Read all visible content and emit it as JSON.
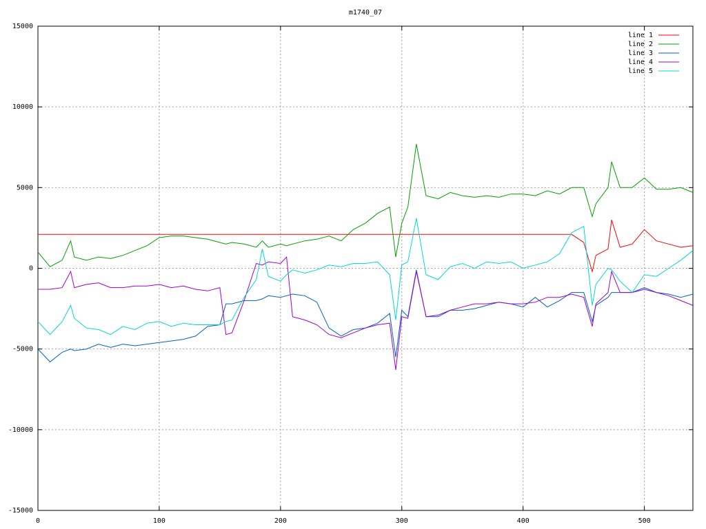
{
  "chart_data": {
    "type": "line",
    "title": "m1740_07",
    "x": [
      0,
      10,
      20,
      27,
      30,
      40,
      50,
      60,
      70,
      80,
      90,
      100,
      110,
      120,
      130,
      140,
      150,
      155,
      160,
      170,
      180,
      185,
      190,
      200,
      205,
      210,
      220,
      230,
      240,
      250,
      260,
      270,
      280,
      290,
      295,
      300,
      305,
      312,
      320,
      330,
      340,
      350,
      360,
      370,
      380,
      390,
      400,
      410,
      420,
      430,
      440,
      450,
      457,
      460,
      470,
      473,
      480,
      490,
      500,
      510,
      520,
      530,
      540
    ],
    "series": [
      {
        "name": "line 1",
        "color": "#ff0000",
        "values": [
          2100,
          2100,
          2100,
          2100,
          2100,
          2100,
          2100,
          2100,
          2100,
          2100,
          2100,
          2100,
          2100,
          2100,
          2100,
          2100,
          2100,
          2100,
          2100,
          2100,
          2100,
          2100,
          2100,
          2100,
          2100,
          2100,
          2100,
          2100,
          2100,
          2100,
          2100,
          2100,
          2100,
          2100,
          2100,
          2100,
          2100,
          2100,
          2100,
          2100,
          2100,
          2100,
          2100,
          2100,
          2100,
          2100,
          2100,
          2100,
          2100,
          2100,
          2100,
          1600,
          -200,
          800,
          1200,
          3000,
          1300,
          1500,
          2400,
          1700,
          1500,
          1300,
          1400
        ]
      },
      {
        "name": "line 2",
        "color": "#00a000",
        "values": [
          1000,
          100,
          500,
          1700,
          700,
          500,
          700,
          600,
          800,
          1100,
          1400,
          1900,
          2000,
          2000,
          1900,
          1800,
          1600,
          1500,
          1600,
          1500,
          1300,
          1700,
          1300,
          1500,
          1400,
          1500,
          1700,
          1800,
          2000,
          1700,
          2400,
          2800,
          3400,
          3800,
          700,
          2800,
          3800,
          7700,
          4500,
          4300,
          4700,
          4500,
          4400,
          4500,
          4400,
          4600,
          4600,
          4500,
          4800,
          4600,
          5000,
          5000,
          3200,
          4000,
          5000,
          6600,
          5000,
          5000,
          5600,
          4900,
          4900,
          5000,
          4700
        ]
      },
      {
        "name": "line 3",
        "color": "#0060c0",
        "values": [
          -5000,
          -5800,
          -5200,
          -5000,
          -5100,
          -5000,
          -4700,
          -4900,
          -4700,
          -4800,
          -4700,
          -4600,
          -4500,
          -4400,
          -4200,
          -3600,
          -3500,
          -2200,
          -2200,
          -2000,
          -2000,
          -1900,
          -1700,
          -1800,
          -1700,
          -1600,
          -1700,
          -2100,
          -3700,
          -4200,
          -3800,
          -3700,
          -3400,
          -2800,
          -5500,
          -2600,
          -3000,
          -100,
          -3000,
          -3000,
          -2600,
          -2600,
          -2500,
          -2300,
          -2100,
          -2200,
          -2400,
          -1800,
          -2400,
          -2000,
          -1500,
          -1500,
          -3300,
          -2300,
          -1800,
          -1500,
          -1500,
          -1500,
          -1200,
          -1500,
          -1600,
          -1800,
          -1600
        ]
      },
      {
        "name": "line 4",
        "color": "#a000d0",
        "values": [
          -1300,
          -1300,
          -1200,
          -200,
          -1200,
          -1000,
          -900,
          -1200,
          -1200,
          -1100,
          -1100,
          -1000,
          -1200,
          -1100,
          -1300,
          -1400,
          -1200,
          -4100,
          -4000,
          -2000,
          300,
          200,
          400,
          300,
          700,
          -3000,
          -3200,
          -3500,
          -4100,
          -4300,
          -4000,
          -3700,
          -3500,
          -3400,
          -6300,
          -3000,
          -3100,
          -200,
          -3000,
          -2900,
          -2600,
          -2400,
          -2200,
          -2200,
          -2100,
          -2200,
          -2200,
          -2100,
          -1800,
          -1800,
          -1600,
          -1800,
          -3600,
          -2200,
          -1500,
          -200,
          -1500,
          -1500,
          -1300,
          -1500,
          -1700,
          -2000,
          -2300
        ]
      },
      {
        "name": "line 5",
        "color": "#00d8d8",
        "values": [
          -3300,
          -4100,
          -3300,
          -2300,
          -3100,
          -3700,
          -3800,
          -4100,
          -3600,
          -3800,
          -3400,
          -3300,
          -3600,
          -3400,
          -3500,
          -3500,
          -3500,
          -3300,
          -3200,
          -1800,
          -700,
          1200,
          -500,
          -800,
          -400,
          -100,
          -300,
          -100,
          200,
          100,
          300,
          300,
          400,
          -400,
          -3200,
          200,
          400,
          3100,
          -400,
          -700,
          100,
          300,
          0,
          400,
          300,
          400,
          0,
          200,
          400,
          900,
          2200,
          2600,
          -2300,
          -1000,
          0,
          -100,
          -800,
          -1500,
          -400,
          -500,
          0,
          500,
          1100
        ]
      }
    ],
    "xlim": [
      0,
      540
    ],
    "xticks": [
      0,
      100,
      200,
      300,
      400,
      500
    ],
    "ylim": [
      -15000,
      15000
    ],
    "yticks": [
      -15000,
      -10000,
      -5000,
      0,
      5000,
      10000,
      15000
    ],
    "grid": true,
    "legend": "top-right"
  }
}
